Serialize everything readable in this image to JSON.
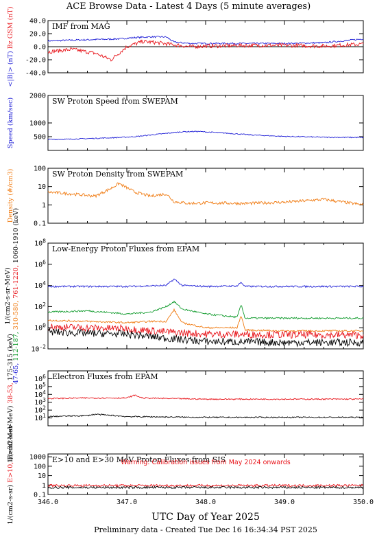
{
  "header": {
    "title": "ACE Browse Data - Latest 4 Days (5 minute averages)",
    "xlabel": "UTC Day of Year 2025",
    "footer": "Preliminary data - Created Tue Dec 16 16:34:34 PST 2025"
  },
  "colors": {
    "blue": "#1f1fd6",
    "red": "#e8151b",
    "orange": "#f07a10",
    "green": "#0e9a2a",
    "black": "#000000"
  },
  "chart_data": [
    {
      "type": "line",
      "title": "IMF from MAG",
      "ylabel_parts": [
        {
          "text": "<|B|> (nT)",
          "color": "blue"
        },
        {
          "text": "Bz GSM (nT)",
          "color": "red"
        }
      ],
      "x_range": [
        346.0,
        350.0
      ],
      "ylim": [
        -40,
        40
      ],
      "y_scale": "linear",
      "y_ticks": [
        "40.0",
        "20.0",
        "0.0",
        "-20.0",
        "-40.0"
      ],
      "zero_line": true,
      "series": [
        {
          "color": "blue",
          "x": [
            346.0,
            346.3,
            346.6,
            346.9,
            347.1,
            347.3,
            347.5,
            347.6,
            347.8,
            348.0,
            348.5,
            349.0,
            349.5,
            350.0
          ],
          "y": [
            9,
            10,
            11,
            12,
            14,
            15,
            15,
            7,
            5,
            5,
            5,
            5,
            6,
            12
          ]
        },
        {
          "color": "red",
          "x": [
            346.0,
            346.3,
            346.6,
            346.8,
            347.0,
            347.2,
            347.4,
            347.6,
            347.8,
            348.0,
            348.5,
            349.0,
            349.5,
            350.0
          ],
          "y": [
            -8,
            -4,
            -10,
            -20,
            0,
            8,
            6,
            3,
            0,
            1,
            2,
            2,
            1,
            4
          ]
        }
      ]
    },
    {
      "type": "line",
      "title": "SW Proton Speed from SWEPAM",
      "ylabel_parts": [
        {
          "text": "Speed (km/sec)",
          "color": "blue"
        }
      ],
      "x_range": [
        346.0,
        350.0
      ],
      "ylim": [
        0,
        2000
      ],
      "y_scale": "linear",
      "y_ticks": [
        "2000",
        "1000",
        "500"
      ],
      "series": [
        {
          "color": "blue",
          "x": [
            346.0,
            346.3,
            346.6,
            346.9,
            347.1,
            347.3,
            347.5,
            347.7,
            347.9,
            348.2,
            348.6,
            349.0,
            349.5,
            350.0
          ],
          "y": [
            400,
            410,
            440,
            470,
            500,
            560,
            620,
            680,
            690,
            640,
            560,
            510,
            480,
            470
          ]
        }
      ]
    },
    {
      "type": "line",
      "title": "SW Proton Density from SWEPAM",
      "ylabel_parts": [
        {
          "text": "Density (#/cm3)",
          "color": "orange"
        }
      ],
      "x_range": [
        346.0,
        350.0
      ],
      "ylim": [
        0.1,
        100
      ],
      "y_scale": "log",
      "y_ticks": [
        "100",
        "10",
        "1",
        "0.1"
      ],
      "series": [
        {
          "color": "orange",
          "x": [
            346.0,
            346.3,
            346.6,
            346.8,
            346.9,
            347.1,
            347.3,
            347.5,
            347.6,
            347.8,
            348.0,
            348.5,
            349.0,
            349.5,
            350.0
          ],
          "y": [
            5,
            4,
            3,
            8,
            15,
            5,
            3,
            4,
            1.5,
            1.2,
            1.3,
            1.2,
            1.4,
            2.0,
            1.0
          ]
        }
      ]
    },
    {
      "type": "line",
      "title": "Low-Energy Proton Fluxes from EPAM",
      "ylabel_parts": [
        {
          "text": "1/(cm2-s-sr-MeV)",
          "color": "black"
        },
        {
          "text": "47-65,",
          "color": "blue"
        },
        {
          "text": "112-187,",
          "color": "green"
        },
        {
          "text": "310-580,",
          "color": "orange"
        },
        {
          "text": "761-1220,",
          "color": "red"
        },
        {
          "text": "1060-1910 (keV)",
          "color": "black"
        }
      ],
      "x_range": [
        346.0,
        350.0
      ],
      "ylim": [
        0.01,
        100000000
      ],
      "y_scale": "log",
      "y_ticks": [
        "10^8",
        "10^6",
        "10^4",
        "10^2",
        "10^0",
        "10^-2"
      ],
      "series": [
        {
          "color": "blue",
          "x": [
            346.0,
            347.0,
            347.5,
            347.6,
            347.7,
            348.0,
            348.4,
            348.45,
            348.5,
            349.0,
            350.0
          ],
          "y": [
            8000,
            8000,
            10000,
            40000,
            10000,
            8000,
            9000,
            20000,
            8000,
            8000,
            8000
          ]
        },
        {
          "color": "green",
          "x": [
            346.0,
            346.5,
            347.0,
            347.3,
            347.5,
            347.6,
            347.7,
            348.0,
            348.4,
            348.45,
            348.5,
            349.0,
            350.0
          ],
          "y": [
            30,
            40,
            20,
            30,
            100,
            300,
            60,
            20,
            10,
            150,
            8,
            8,
            8
          ]
        },
        {
          "color": "orange",
          "x": [
            346.0,
            346.5,
            347.0,
            347.3,
            347.5,
            347.6,
            347.7,
            348.0,
            348.4,
            348.45,
            348.5,
            349.0,
            350.0
          ],
          "y": [
            5,
            4,
            3,
            4,
            4,
            50,
            3,
            1,
            1,
            15,
            0.6,
            0.5,
            0.5
          ]
        },
        {
          "color": "red",
          "x": [
            346.0,
            346.5,
            347.0,
            347.5,
            348.0,
            349.0,
            350.0
          ],
          "y": [
            1.2,
            1.0,
            0.8,
            0.4,
            0.25,
            0.22,
            0.2
          ]
        },
        {
          "color": "black",
          "x": [
            346.0,
            346.5,
            347.0,
            347.5,
            348.0,
            349.0,
            350.0
          ],
          "y": [
            0.4,
            0.3,
            0.25,
            0.1,
            0.05,
            0.04,
            0.04
          ]
        }
      ]
    },
    {
      "type": "line",
      "title": "Electron Fluxes from EPAM",
      "ylabel_parts": [
        {
          "text": "1/(cm2-s-sr-MeV)",
          "color": "black"
        },
        {
          "text": "38-53,",
          "color": "red"
        },
        {
          "text": "175-315 (keV)",
          "color": "black"
        }
      ],
      "x_range": [
        346.0,
        350.0
      ],
      "ylim": [
        1,
        10000000
      ],
      "y_scale": "log",
      "y_ticks": [
        "10^6",
        "10^5",
        "10^4",
        "10^3",
        "10^2",
        "10^1"
      ],
      "series": [
        {
          "color": "red",
          "x": [
            346.0,
            346.5,
            347.0,
            347.1,
            347.2,
            347.5,
            348.0,
            349.0,
            350.0
          ],
          "y": [
            3000,
            3500,
            3500,
            8000,
            3500,
            3000,
            2500,
            2500,
            2500
          ]
        },
        {
          "color": "black",
          "x": [
            346.0,
            346.5,
            346.6,
            347.0,
            348.0,
            349.0,
            350.0
          ],
          "y": [
            15,
            20,
            30,
            15,
            12,
            12,
            12
          ]
        }
      ]
    },
    {
      "type": "line",
      "title": "E>10 and E>30 MeV Proton Fluxes from SIS",
      "ylabel_parts": [
        {
          "text": "1/(cm2-s-sr)",
          "color": "black"
        },
        {
          "text": "E>10,",
          "color": "red"
        },
        {
          "text": "E>30 MeV",
          "color": "black"
        }
      ],
      "annotation": "Warning: Calibration issues from May 2024 onwards",
      "x_range": [
        346.0,
        350.0
      ],
      "ylim": [
        0.1,
        2000
      ],
      "y_scale": "log",
      "y_ticks": [
        "1000",
        "100",
        "10",
        "1",
        "0.1"
      ],
      "series": [
        {
          "color": "red",
          "x": [
            346.0,
            347.0,
            348.0,
            349.0,
            350.0
          ],
          "y": [
            0.9,
            0.9,
            0.9,
            0.9,
            0.9
          ]
        },
        {
          "color": "black",
          "x": [
            346.0,
            347.0,
            348.0,
            349.0,
            350.0
          ],
          "y": [
            0.55,
            0.55,
            0.55,
            0.55,
            0.55
          ]
        }
      ]
    }
  ],
  "x_tick_labels": [
    "346.0",
    "347.0",
    "348.0",
    "349.0",
    "350.0"
  ]
}
